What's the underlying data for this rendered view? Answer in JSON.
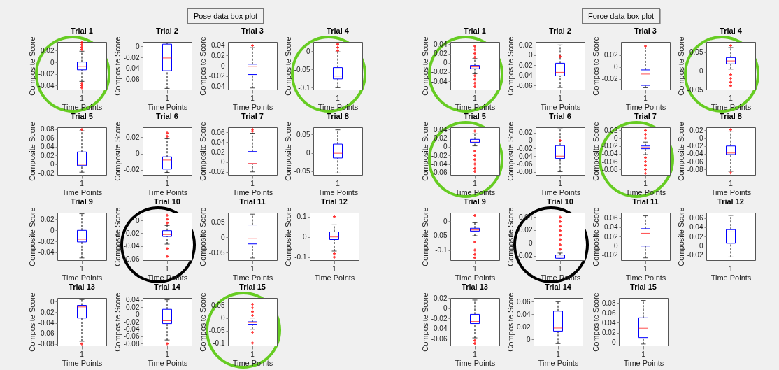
{
  "chart_data": [
    {
      "type": "other",
      "title": "Pose data box plot"
    },
    {
      "type": "box",
      "title": "Trial 1",
      "xlabel": "Time Points",
      "ylabel": "Composite Score",
      "categories": [
        "1"
      ],
      "ylim": [
        -0.047,
        0.035
      ],
      "yticks": [
        -0.04,
        -0.02,
        0,
        0.02
      ],
      "marker": "cross",
      "boxes": [
        {
          "low": -0.033,
          "q1": -0.013,
          "median": -0.007,
          "q3": 0.0005,
          "high": 0.019,
          "outliers": [
            0.022,
            0.026,
            0.03,
            0.034,
            -0.036,
            -0.04,
            -0.044
          ]
        }
      ]
    },
    {
      "type": "box",
      "title": "Trial 2",
      "xlabel": "Time Points",
      "ylabel": "Composite Score",
      "categories": [
        "1"
      ],
      "ylim": [
        -0.078,
        0.008
      ],
      "yticks": [
        -0.06,
        -0.04,
        -0.02,
        0
      ],
      "boxes": [
        {
          "low": -0.076,
          "q1": -0.044,
          "median": -0.021,
          "q3": 0.004,
          "high": 0.006
        }
      ]
    },
    {
      "type": "box",
      "title": "Trial 3",
      "xlabel": "Time Points",
      "ylabel": "Composite Score",
      "categories": [
        "1"
      ],
      "ylim": [
        -0.046,
        0.046
      ],
      "yticks": [
        -0.04,
        -0.02,
        0,
        0.02,
        0.04
      ],
      "marker": "cross",
      "boxes": [
        {
          "low": -0.043,
          "q1": -0.017,
          "median": -0.001,
          "q3": 0.003,
          "high": 0.035,
          "outliers": [
            0.039
          ]
        }
      ]
    },
    {
      "type": "box",
      "title": "Trial 4",
      "xlabel": "Time Points",
      "ylabel": "Composite Score",
      "categories": [
        "1"
      ],
      "ylim": [
        -0.105,
        0.025
      ],
      "yticks": [
        -0.1,
        -0.05,
        0
      ],
      "marker": "cross",
      "boxes": [
        {
          "low": -0.1,
          "q1": -0.076,
          "median": -0.068,
          "q3": -0.045,
          "high": -0.002,
          "outliers": [
            0.001,
            0.01,
            0.019
          ]
        }
      ]
    },
    {
      "type": "box",
      "title": "Trial 5",
      "xlabel": "Time Points",
      "ylabel": "Composite Score",
      "categories": [
        "1"
      ],
      "ylim": [
        -0.024,
        0.084
      ],
      "yticks": [
        -0.02,
        0,
        0.02,
        0.04,
        0.06,
        0.08
      ],
      "marker": "cross",
      "boxes": [
        {
          "low": -0.018,
          "q1": -0.003,
          "median": 0,
          "q3": 0.028,
          "high": 0.076,
          "outliers": [
            0.079
          ]
        }
      ]
    },
    {
      "type": "box",
      "title": "Trial 6",
      "xlabel": "Time Points",
      "ylabel": "Composite Score",
      "categories": [
        "1"
      ],
      "ylim": [
        -0.026,
        0.032
      ],
      "yticks": [
        -0.02,
        0,
        0.02
      ],
      "marker": "cross",
      "boxes": [
        {
          "low": -0.023,
          "q1": -0.019,
          "median": -0.008,
          "q3": -0.004,
          "high": 0.018,
          "outliers": [
            0.021,
            0.025
          ]
        }
      ]
    },
    {
      "type": "box",
      "title": "Trial 7",
      "xlabel": "Time Points",
      "ylabel": "Composite Score",
      "categories": [
        "1"
      ],
      "ylim": [
        -0.026,
        0.07
      ],
      "yticks": [
        -0.02,
        0,
        0.02,
        0.04,
        0.06
      ],
      "marker": "cross",
      "boxes": [
        {
          "low": -0.02,
          "q1": -0.004,
          "median": -0.003,
          "q3": 0.021,
          "high": 0.058,
          "outliers": [
            0.062,
            0.066
          ]
        }
      ]
    },
    {
      "type": "box",
      "title": "Trial 8",
      "xlabel": "Time Points",
      "ylabel": "Composite Score",
      "categories": [
        "1"
      ],
      "ylim": [
        -0.06,
        0.07
      ],
      "yticks": [
        -0.05,
        0,
        0.05
      ],
      "boxes": [
        {
          "low": -0.055,
          "q1": -0.014,
          "median": -0.001,
          "q3": 0.024,
          "high": 0.063
        }
      ]
    },
    {
      "type": "box",
      "title": "Trial 9",
      "xlabel": "Time Points",
      "ylabel": "Composite Score",
      "categories": [
        "1"
      ],
      "ylim": [
        -0.054,
        0.032
      ],
      "yticks": [
        -0.04,
        -0.02,
        0,
        0.02
      ],
      "boxes": [
        {
          "low": -0.05,
          "q1": -0.021,
          "median": -0.016,
          "q3": 0,
          "high": 0.03
        }
      ]
    },
    {
      "type": "box",
      "title": "Trial 10",
      "xlabel": "Time Points",
      "ylabel": "Composite Score",
      "categories": [
        "1"
      ],
      "ylim": [
        -0.062,
        0.012
      ],
      "yticks": [
        -0.06,
        -0.04,
        -0.02,
        0
      ],
      "marker": "cross",
      "boxes": [
        {
          "low": -0.037,
          "q1": -0.025,
          "median": -0.022,
          "q3": -0.016,
          "high": -0.008,
          "outliers": [
            -0.004,
            0.002,
            0.008,
            -0.044,
            -0.056
          ]
        }
      ]
    },
    {
      "type": "box",
      "title": "Trial 11",
      "xlabel": "Time Points",
      "ylabel": "Composite Score",
      "categories": [
        "1"
      ],
      "ylim": [
        -0.075,
        0.08
      ],
      "yticks": [
        -0.05,
        0,
        0.05
      ],
      "boxes": [
        {
          "low": -0.068,
          "q1": -0.022,
          "median": -0.005,
          "q3": 0.04,
          "high": 0.075
        }
      ]
    },
    {
      "type": "box",
      "title": "Trial 12",
      "xlabel": "Time Points",
      "ylabel": "Composite Score",
      "categories": [
        "1"
      ],
      "ylim": [
        -0.115,
        0.12
      ],
      "yticks": [
        -0.1,
        0,
        0.1
      ],
      "marker": "cross",
      "boxes": [
        {
          "low": -0.07,
          "q1": -0.013,
          "median": 0,
          "q3": 0.025,
          "high": 0.06,
          "outliers": [
            0.1,
            -0.083,
            -0.1
          ]
        }
      ]
    },
    {
      "type": "box",
      "title": "Trial 13",
      "xlabel": "Time Points",
      "ylabel": "Composite Score",
      "categories": [
        "1"
      ],
      "ylim": [
        -0.083,
        0.007
      ],
      "yticks": [
        -0.08,
        -0.06,
        -0.04,
        -0.02,
        0
      ],
      "marker": "cross",
      "boxes": [
        {
          "low": -0.075,
          "q1": -0.031,
          "median": -0.01,
          "q3": -0.007,
          "high": 0.004,
          "outliers": [
            -0.08
          ]
        }
      ]
    },
    {
      "type": "box",
      "title": "Trial 14",
      "xlabel": "Time Points",
      "ylabel": "Composite Score",
      "categories": [
        "1"
      ],
      "ylim": [
        -0.085,
        0.045
      ],
      "yticks": [
        -0.08,
        -0.06,
        -0.04,
        -0.02,
        0,
        0.02,
        0.04
      ],
      "marker": "cross",
      "boxes": [
        {
          "low": -0.07,
          "q1": -0.025,
          "median": -0.017,
          "q3": 0.014,
          "high": 0.04,
          "outliers": [
            -0.08
          ]
        }
      ]
    },
    {
      "type": "box",
      "title": "Trial 15",
      "xlabel": "Time Points",
      "ylabel": "Composite Score",
      "categories": [
        "1"
      ],
      "ylim": [
        -0.11,
        0.08
      ],
      "yticks": [
        -0.1,
        -0.05,
        0,
        0.05
      ],
      "marker": "cross",
      "boxes": [
        {
          "low": -0.045,
          "q1": -0.025,
          "median": -0.018,
          "q3": -0.015,
          "high": 0,
          "outliers": [
            0.01,
            0.025,
            0.04,
            0.055,
            -0.057,
            -0.1
          ]
        }
      ]
    },
    {
      "type": "other",
      "title": "Force data box plot"
    },
    {
      "type": "box",
      "title": "Trial 1",
      "xlabel": "Time Points",
      "ylabel": "Composite Score",
      "categories": [
        "1"
      ],
      "ylim": [
        -0.058,
        0.045
      ],
      "yticks": [
        -0.04,
        -0.02,
        0,
        0.02,
        0.04
      ],
      "marker": "cross",
      "boxes": [
        {
          "low": -0.024,
          "q1": -0.013,
          "median": -0.009,
          "q3": -0.006,
          "high": 0.009,
          "outliers": [
            0.012,
            0.02,
            0.028,
            0.036,
            -0.028,
            -0.036,
            -0.044,
            -0.052
          ]
        }
      ]
    },
    {
      "type": "box",
      "title": "Trial 2",
      "xlabel": "Time Points",
      "ylabel": "Composite Score",
      "categories": [
        "1"
      ],
      "ylim": [
        -0.068,
        0.026
      ],
      "yticks": [
        -0.06,
        -0.04,
        -0.02,
        0,
        0.02
      ],
      "marker": "cross",
      "boxes": [
        {
          "low": -0.064,
          "q1": -0.041,
          "median": -0.034,
          "q3": -0.016,
          "high": 0.02,
          "outliers": [
            -0.003
          ]
        }
      ]
    },
    {
      "type": "box",
      "title": "Trial 3",
      "xlabel": "Time Points",
      "ylabel": "Composite Score",
      "categories": [
        "1"
      ],
      "ylim": [
        -0.038,
        0.042
      ],
      "yticks": [
        -0.02,
        0,
        0.02
      ],
      "marker": "cross",
      "boxes": [
        {
          "low": -0.035,
          "q1": -0.031,
          "median": -0.012,
          "q3": -0.005,
          "high": 0.032,
          "outliers": [
            0.035
          ]
        }
      ]
    },
    {
      "type": "box",
      "title": "Trial 4",
      "xlabel": "Time Points",
      "ylabel": "Composite Score",
      "categories": [
        "1"
      ],
      "ylim": [
        -0.05,
        0.078
      ],
      "yticks": [
        -0.05,
        0,
        0.05
      ],
      "marker": "cross",
      "boxes": [
        {
          "low": 0.005,
          "q1": 0.019,
          "median": 0.027,
          "q3": 0.036,
          "high": 0.063,
          "outliers": [
            0.068,
            -0.01,
            -0.02,
            -0.03,
            -0.04
          ]
        }
      ]
    },
    {
      "type": "box",
      "title": "Trial 5",
      "xlabel": "Time Points",
      "ylabel": "Composite Score",
      "categories": [
        "1"
      ],
      "ylim": [
        -0.065,
        0.045
      ],
      "yticks": [
        -0.06,
        -0.04,
        -0.02,
        0,
        0.02,
        0.04
      ],
      "marker": "cross",
      "boxes": [
        {
          "low": 0.002,
          "q1": 0.01,
          "median": 0.013,
          "q3": 0.017,
          "high": 0.03,
          "outliers": [
            0.036,
            -0.01,
            -0.02,
            -0.03,
            -0.04,
            -0.05,
            -0.057
          ]
        }
      ]
    },
    {
      "type": "box",
      "title": "Trial 6",
      "xlabel": "Time Points",
      "ylabel": "Composite Score",
      "categories": [
        "1"
      ],
      "ylim": [
        -0.088,
        0.034
      ],
      "yticks": [
        -0.08,
        -0.06,
        -0.04,
        -0.02,
        0,
        0.02
      ],
      "marker": "cross",
      "boxes": [
        {
          "low": -0.08,
          "q1": -0.046,
          "median": -0.04,
          "q3": -0.013,
          "high": 0.03,
          "outliers": [
            0
          ]
        }
      ]
    },
    {
      "type": "box",
      "title": "Trial 7",
      "xlabel": "Time Points",
      "ylabel": "Composite Score",
      "categories": [
        "1"
      ],
      "ylim": [
        -0.094,
        0.028
      ],
      "yticks": [
        -0.08,
        -0.06,
        -0.04,
        -0.02,
        0,
        0.02
      ],
      "marker": "cross",
      "boxes": [
        {
          "low": -0.042,
          "q1": -0.027,
          "median": -0.024,
          "q3": -0.02,
          "high": -0.01,
          "outliers": [
            0,
            0.01,
            0.02,
            -0.05,
            -0.06,
            -0.07,
            -0.08,
            -0.09
          ]
        }
      ]
    },
    {
      "type": "box",
      "title": "Trial 8",
      "xlabel": "Time Points",
      "ylabel": "Composite Score",
      "categories": [
        "1"
      ],
      "ylim": [
        -0.094,
        0.028
      ],
      "yticks": [
        -0.08,
        -0.06,
        -0.04,
        -0.02,
        0,
        0.02
      ],
      "marker": "cross",
      "boxes": [
        {
          "low": -0.085,
          "q1": -0.042,
          "median": -0.038,
          "q3": -0.02,
          "high": 0.018,
          "outliers": [
            0.022,
            -0.089
          ]
        }
      ]
    },
    {
      "type": "box",
      "title": "Trial 9",
      "xlabel": "Time Points",
      "ylabel": "Composite Score",
      "categories": [
        "1"
      ],
      "ylim": [
        -0.135,
        0.03
      ],
      "yticks": [
        -0.1,
        -0.05,
        0
      ],
      "marker": "cross",
      "boxes": [
        {
          "low": -0.05,
          "q1": -0.034,
          "median": -0.03,
          "q3": -0.024,
          "high": -0.005,
          "outliers": [
            0.02,
            -0.072,
            -0.1,
            -0.115,
            -0.127
          ]
        }
      ]
    },
    {
      "type": "box",
      "title": "Trial 10",
      "xlabel": "Time Points",
      "ylabel": "Composite Score",
      "categories": [
        "1"
      ],
      "ylim": [
        -0.027,
        0.047
      ],
      "yticks": [
        -0.02,
        0,
        0.02,
        0.04
      ],
      "marker": "cross",
      "boxes": [
        {
          "low": -0.025,
          "q1": -0.024,
          "median": -0.022,
          "q3": -0.019,
          "high": -0.016,
          "outliers": [
            -0.01,
            -0.003,
            0.005,
            0.012,
            0.019,
            0.026,
            0.033,
            0.04
          ]
        }
      ]
    },
    {
      "type": "box",
      "title": "Trial 11",
      "xlabel": "Time Points",
      "ylabel": "Composite Score",
      "categories": [
        "1"
      ],
      "ylim": [
        -0.032,
        0.072
      ],
      "yticks": [
        -0.02,
        0,
        0.02,
        0.04,
        0.06
      ],
      "boxes": [
        {
          "low": -0.027,
          "q1": -0.001,
          "median": 0.027,
          "q3": 0.037,
          "high": 0.065
        }
      ]
    },
    {
      "type": "box",
      "title": "Trial 12",
      "xlabel": "Time Points",
      "ylabel": "Composite Score",
      "categories": [
        "1"
      ],
      "ylim": [
        -0.032,
        0.072
      ],
      "yticks": [
        -0.02,
        0,
        0.02,
        0.04,
        0.06
      ],
      "boxes": [
        {
          "low": -0.025,
          "q1": 0.005,
          "median": 0.03,
          "q3": 0.035,
          "high": 0.066
        }
      ]
    },
    {
      "type": "box",
      "title": "Trial 13",
      "xlabel": "Time Points",
      "ylabel": "Composite Score",
      "categories": [
        "1"
      ],
      "ylim": [
        -0.073,
        0.02
      ],
      "yticks": [
        -0.06,
        -0.04,
        -0.02,
        0,
        0.02
      ],
      "marker": "cross",
      "boxes": [
        {
          "low": -0.058,
          "q1": -0.03,
          "median": -0.026,
          "q3": -0.012,
          "high": 0.016,
          "outliers": [
            -0.063,
            -0.069
          ]
        }
      ]
    },
    {
      "type": "box",
      "title": "Trial 14",
      "xlabel": "Time Points",
      "ylabel": "Composite Score",
      "categories": [
        "1"
      ],
      "ylim": [
        -0.01,
        0.066
      ],
      "yticks": [
        0,
        0.02,
        0.04,
        0.06
      ],
      "boxes": [
        {
          "low": -0.007,
          "q1": 0.013,
          "median": 0.018,
          "q3": 0.045,
          "high": 0.06
        }
      ]
    },
    {
      "type": "box",
      "title": "Trial 15",
      "xlabel": "Time Points",
      "ylabel": "Composite Score",
      "categories": [
        "1"
      ],
      "ylim": [
        -0.006,
        0.09
      ],
      "yticks": [
        0,
        0.02,
        0.04,
        0.06,
        0.08
      ],
      "boxes": [
        {
          "low": -0.003,
          "q1": 0.01,
          "median": 0.029,
          "q3": 0.05,
          "high": 0.085
        }
      ]
    }
  ]
}
